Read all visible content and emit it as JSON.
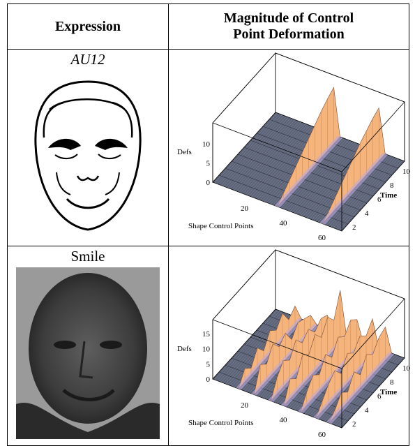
{
  "table": {
    "header": [
      "Expression",
      "Magnitude of Control Point Deformation"
    ],
    "rows": [
      {
        "label": "AU12",
        "plot": {
          "z_label": "Defs",
          "z_ticks": [
            0,
            5,
            10
          ],
          "x_label": "Shape Control Points",
          "x_ticks": [
            20,
            40,
            60
          ],
          "y_label": "Time",
          "y_ticks": [
            2,
            4,
            6,
            8,
            10
          ]
        }
      },
      {
        "label": "Smile",
        "plot": {
          "z_label": "Defs",
          "z_ticks": [
            0,
            5,
            10,
            15
          ],
          "x_label": "Shape Control Points",
          "x_ticks": [
            20,
            40,
            60
          ],
          "y_label": "Time",
          "y_ticks": [
            2,
            4,
            6,
            8,
            10
          ]
        }
      }
    ]
  }
}
